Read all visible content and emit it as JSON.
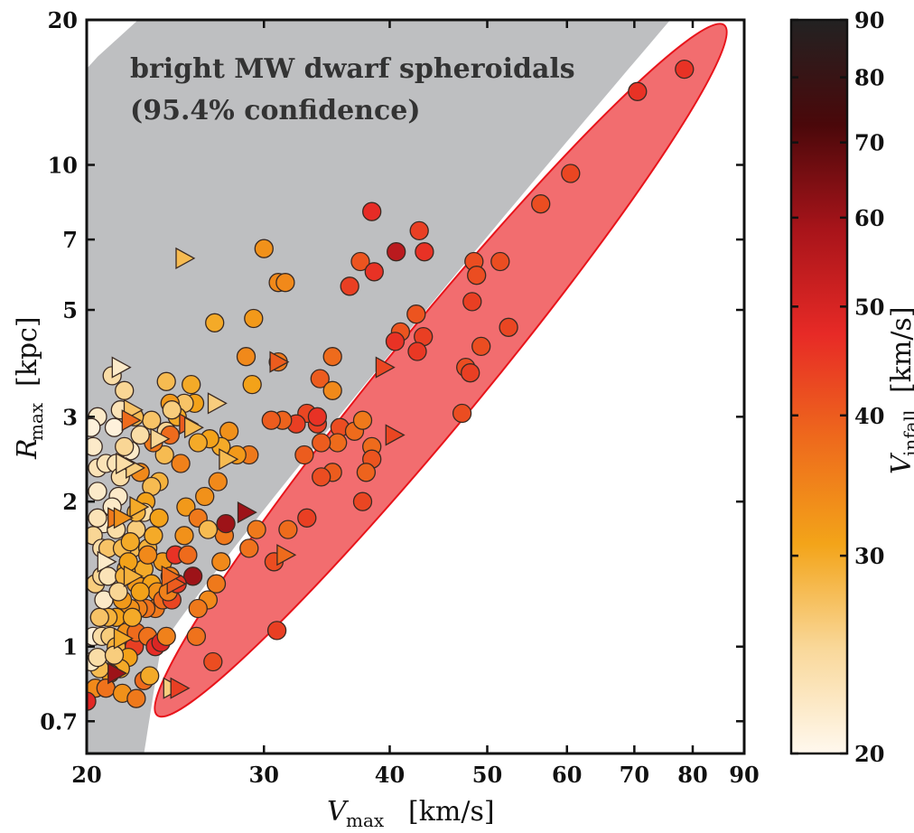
{
  "chart_data": {
    "type": "scatter",
    "x_scale": "log",
    "y_scale": "log",
    "xlim": [
      20,
      90
    ],
    "ylim": [
      0.6,
      20
    ],
    "x_ticks": [
      20,
      30,
      40,
      50,
      60,
      70,
      80,
      90
    ],
    "y_ticks": [
      0.7,
      1,
      2,
      3,
      5,
      7,
      10,
      20
    ],
    "xlabel": {
      "main": "V",
      "sub": "max",
      "unit": "[km/s]"
    },
    "ylabel": {
      "main": "R",
      "sub": "max",
      "unit": "[kpc]"
    },
    "annotation": {
      "line1": "bright MW dwarf spheroidals",
      "line2": "(95.4% confidence)"
    },
    "colorbar": {
      "label": {
        "main": "V",
        "sub": "infall",
        "unit": "[km/s]"
      },
      "range": [
        20,
        90
      ],
      "scale": "log",
      "ticks": [
        20,
        30,
        40,
        50,
        60,
        70,
        80,
        90
      ],
      "palette": [
        "#fff8ee",
        "#f9d89a",
        "#f3a419",
        "#ee6a1c",
        "#e72a26",
        "#a8141a",
        "#4a080a",
        "#222222"
      ]
    },
    "regions": {
      "dwarf_band_color": "#bebfc1",
      "ellipse_fill": "#f26d6f",
      "ellipse_stroke": "#e8141b",
      "ellipse": {
        "x1": 23.5,
        "y1": 0.72,
        "x2": 86,
        "y2": 19.5,
        "minor_halfwidth_decades": 0.1
      }
    },
    "series": [
      {
        "marker": "circle",
        "points": [
          [
            78.5,
            15.8,
            46
          ],
          [
            70.5,
            14.2,
            46
          ],
          [
            60.5,
            9.6,
            43
          ],
          [
            56.5,
            8.3,
            42
          ],
          [
            51.5,
            6.3,
            42
          ],
          [
            48.5,
            6.3,
            42
          ],
          [
            48.8,
            5.9,
            42
          ],
          [
            48.3,
            5.2,
            44
          ],
          [
            52.5,
            4.6,
            43
          ],
          [
            49.3,
            4.2,
            42
          ],
          [
            47.6,
            3.8,
            42
          ],
          [
            48.1,
            3.7,
            44
          ],
          [
            47.2,
            3.05,
            42
          ],
          [
            42.5,
            4.9,
            41
          ],
          [
            43.2,
            4.4,
            44
          ],
          [
            42.6,
            4.1,
            45
          ],
          [
            41.0,
            4.5,
            41
          ],
          [
            40.5,
            4.3,
            46
          ],
          [
            43.3,
            6.6,
            46
          ],
          [
            42.8,
            7.3,
            44
          ],
          [
            40.6,
            6.6,
            55
          ],
          [
            38.4,
            8.0,
            47
          ],
          [
            37.4,
            6.3,
            41
          ],
          [
            38.6,
            6.0,
            46
          ],
          [
            36.5,
            5.6,
            44
          ],
          [
            35.1,
            4.0,
            38
          ],
          [
            34.1,
            3.6,
            40
          ],
          [
            35.1,
            3.4,
            34
          ],
          [
            35.7,
            2.85,
            42
          ],
          [
            35.5,
            2.65,
            38
          ],
          [
            34.2,
            2.65,
            40
          ],
          [
            33.9,
            2.9,
            44
          ],
          [
            33.1,
            3.05,
            43
          ],
          [
            33.9,
            3.0,
            46
          ],
          [
            32.3,
            2.9,
            44
          ],
          [
            31.3,
            2.95,
            39
          ],
          [
            30.5,
            2.95,
            40
          ],
          [
            32.9,
            2.5,
            40
          ],
          [
            36.9,
            2.8,
            38
          ],
          [
            37.6,
            2.95,
            36
          ],
          [
            38.4,
            2.6,
            38
          ],
          [
            38.4,
            2.45,
            41
          ],
          [
            37.9,
            2.3,
            39
          ],
          [
            35.1,
            2.3,
            40
          ],
          [
            34.2,
            2.25,
            42
          ],
          [
            37.6,
            2.0,
            43
          ],
          [
            33.1,
            1.85,
            44
          ],
          [
            31.7,
            1.75,
            38
          ],
          [
            29.5,
            1.75,
            36
          ],
          [
            30.7,
            1.5,
            42
          ],
          [
            29.0,
            1.6,
            37
          ],
          [
            27.4,
            1.7,
            36
          ],
          [
            27.2,
            1.5,
            34
          ],
          [
            26.9,
            1.35,
            36
          ],
          [
            26.4,
            1.25,
            34
          ],
          [
            25.8,
            1.2,
            36
          ],
          [
            25.7,
            1.05,
            37
          ],
          [
            26.7,
            0.93,
            42
          ],
          [
            30.9,
            1.08,
            44
          ],
          [
            31.0,
            5.7,
            34
          ],
          [
            31.5,
            5.7,
            34
          ],
          [
            31.0,
            3.9,
            36
          ],
          [
            30.0,
            6.7,
            33
          ],
          [
            29.3,
            4.8,
            32
          ],
          [
            29.2,
            3.5,
            31
          ],
          [
            26.8,
            4.7,
            30
          ],
          [
            28.8,
            4.0,
            34
          ],
          [
            29.0,
            2.5,
            36
          ],
          [
            28.2,
            2.5,
            32
          ],
          [
            27.7,
            2.8,
            33
          ],
          [
            27.2,
            2.6,
            30
          ],
          [
            26.5,
            2.7,
            31
          ],
          [
            25.8,
            2.65,
            30
          ],
          [
            25.6,
            3.2,
            31
          ],
          [
            25.4,
            3.5,
            30
          ],
          [
            25.0,
            3.2,
            27
          ],
          [
            24.6,
            3.0,
            30
          ],
          [
            24.2,
            3.2,
            32
          ],
          [
            24.0,
            3.55,
            28
          ],
          [
            24.3,
            3.1,
            26
          ],
          [
            24.0,
            2.8,
            25
          ],
          [
            23.9,
            2.5,
            28
          ],
          [
            23.6,
            2.2,
            29
          ],
          [
            23.2,
            2.15,
            28
          ],
          [
            22.9,
            2.0,
            31
          ],
          [
            22.8,
            1.9,
            24
          ],
          [
            22.4,
            1.75,
            26
          ],
          [
            22.2,
            1.6,
            28
          ],
          [
            23.0,
            1.6,
            29
          ],
          [
            23.3,
            1.7,
            30
          ],
          [
            23.8,
            1.5,
            32
          ],
          [
            24.2,
            1.4,
            35
          ],
          [
            24.5,
            1.55,
            46
          ],
          [
            25.0,
            1.7,
            33
          ],
          [
            25.1,
            1.95,
            32
          ],
          [
            25.8,
            1.85,
            36
          ],
          [
            26.4,
            1.75,
            28
          ],
          [
            26.2,
            2.05,
            33
          ],
          [
            27.0,
            2.2,
            34
          ],
          [
            24.8,
            2.4,
            35
          ],
          [
            24.2,
            2.75,
            38
          ],
          [
            23.3,
            2.65,
            36
          ],
          [
            23.2,
            2.95,
            27
          ],
          [
            22.6,
            2.75,
            24
          ],
          [
            22.1,
            2.55,
            22
          ],
          [
            21.8,
            2.6,
            25
          ],
          [
            21.3,
            2.85,
            21
          ],
          [
            21.6,
            3.1,
            23
          ],
          [
            22.3,
            3.0,
            28
          ],
          [
            21.8,
            3.4,
            25
          ],
          [
            21.2,
            3.65,
            24
          ],
          [
            20.5,
            3.0,
            22
          ],
          [
            20.2,
            2.85,
            21
          ],
          [
            20.3,
            2.6,
            22
          ],
          [
            20.5,
            2.35,
            23
          ],
          [
            20.9,
            2.4,
            23
          ],
          [
            21.4,
            2.4,
            23
          ],
          [
            21.6,
            2.25,
            24
          ],
          [
            21.5,
            2.05,
            22
          ],
          [
            21.2,
            1.95,
            22
          ],
          [
            20.8,
            1.8,
            22
          ],
          [
            20.5,
            1.85,
            23
          ],
          [
            20.3,
            1.7,
            25
          ],
          [
            20.7,
            1.6,
            24
          ],
          [
            21.0,
            1.6,
            27
          ],
          [
            21.4,
            1.75,
            24
          ],
          [
            21.7,
            1.6,
            28
          ],
          [
            22.1,
            1.65,
            30
          ],
          [
            21.9,
            1.45,
            29
          ],
          [
            22.4,
            1.35,
            32
          ],
          [
            22.8,
            1.45,
            30
          ],
          [
            23.2,
            1.35,
            31
          ],
          [
            23.5,
            1.3,
            33
          ],
          [
            23.4,
            1.2,
            36
          ],
          [
            23.8,
            1.25,
            38
          ],
          [
            24.3,
            1.25,
            43
          ],
          [
            22.9,
            1.2,
            37
          ],
          [
            22.5,
            1.2,
            35
          ],
          [
            22.1,
            1.2,
            33
          ],
          [
            21.7,
            1.25,
            32
          ],
          [
            21.4,
            1.15,
            31
          ],
          [
            21.0,
            1.15,
            29
          ],
          [
            20.6,
            1.15,
            27
          ],
          [
            20.4,
            1.35,
            26
          ],
          [
            20.7,
            1.4,
            25
          ],
          [
            21.0,
            1.4,
            23
          ],
          [
            20.3,
            1.05,
            21
          ],
          [
            20.7,
            1.05,
            24
          ],
          [
            21.1,
            1.05,
            26
          ],
          [
            21.4,
            1.0,
            29
          ],
          [
            21.9,
            1.07,
            33
          ],
          [
            22.3,
            1.0,
            44
          ],
          [
            22.4,
            1.07,
            38
          ],
          [
            23.0,
            1.05,
            37
          ],
          [
            23.4,
            1.0,
            47
          ],
          [
            23.7,
            1.02,
            49
          ],
          [
            24.0,
            1.05,
            35
          ],
          [
            24.1,
            1.3,
            35
          ],
          [
            22.2,
            1.15,
            30
          ],
          [
            21.8,
            1.4,
            29
          ],
          [
            22.0,
            0.95,
            31
          ],
          [
            21.6,
            0.9,
            30
          ],
          [
            21.1,
            0.88,
            32
          ],
          [
            20.6,
            0.9,
            28
          ],
          [
            20.4,
            0.82,
            34
          ],
          [
            20.9,
            0.82,
            37
          ],
          [
            21.7,
            0.8,
            33
          ],
          [
            22.4,
            0.78,
            36
          ],
          [
            22.8,
            0.85,
            38
          ],
          [
            23.1,
            0.87,
            30
          ],
          [
            20.0,
            0.77,
            48
          ],
          [
            20.2,
            0.93,
            22
          ],
          [
            20.5,
            0.95,
            24
          ],
          [
            21.3,
            0.96,
            26
          ],
          [
            22.6,
            1.3,
            31
          ],
          [
            22.0,
            1.5,
            31
          ],
          [
            22.6,
            2.3,
            34
          ],
          [
            23.0,
            1.55,
            34
          ],
          [
            23.6,
            1.85,
            31
          ],
          [
            25.2,
            1.55,
            38
          ],
          [
            25.5,
            1.4,
            60
          ],
          [
            24.6,
            1.35,
            45
          ],
          [
            27.5,
            1.8,
            60
          ],
          [
            20.8,
            1.25,
            22
          ],
          [
            21.5,
            1.3,
            25
          ],
          [
            22.4,
            1.9,
            29
          ],
          [
            20.5,
            2.1,
            22
          ]
        ]
      },
      {
        "marker": "triangle",
        "points": [
          [
            40.4,
            2.75,
            43
          ],
          [
            39.5,
            3.8,
            43
          ],
          [
            31.5,
            1.55,
            38
          ],
          [
            31.0,
            3.9,
            40
          ],
          [
            28.8,
            1.9,
            60
          ],
          [
            27.6,
            2.45,
            28
          ],
          [
            26.9,
            3.2,
            26
          ],
          [
            25.0,
            6.4,
            28
          ],
          [
            25.2,
            2.9,
            40
          ],
          [
            25.5,
            2.85,
            28
          ],
          [
            23.6,
            2.7,
            25
          ],
          [
            22.3,
            2.35,
            26
          ],
          [
            22.5,
            1.95,
            30
          ],
          [
            21.8,
            2.4,
            24
          ],
          [
            22.2,
            3.1,
            27
          ],
          [
            22.1,
            2.95,
            38
          ],
          [
            21.6,
            3.8,
            22
          ],
          [
            21.4,
            1.85,
            36
          ],
          [
            21.7,
            1.85,
            33
          ],
          [
            20.9,
            1.5,
            22
          ],
          [
            22.2,
            1.4,
            29
          ],
          [
            24.5,
            1.35,
            40
          ],
          [
            24.2,
            1.4,
            38
          ],
          [
            21.7,
            1.04,
            30
          ],
          [
            21.4,
            0.88,
            60
          ],
          [
            24.3,
            0.82,
            26
          ],
          [
            24.7,
            0.82,
            44
          ]
        ]
      }
    ]
  }
}
